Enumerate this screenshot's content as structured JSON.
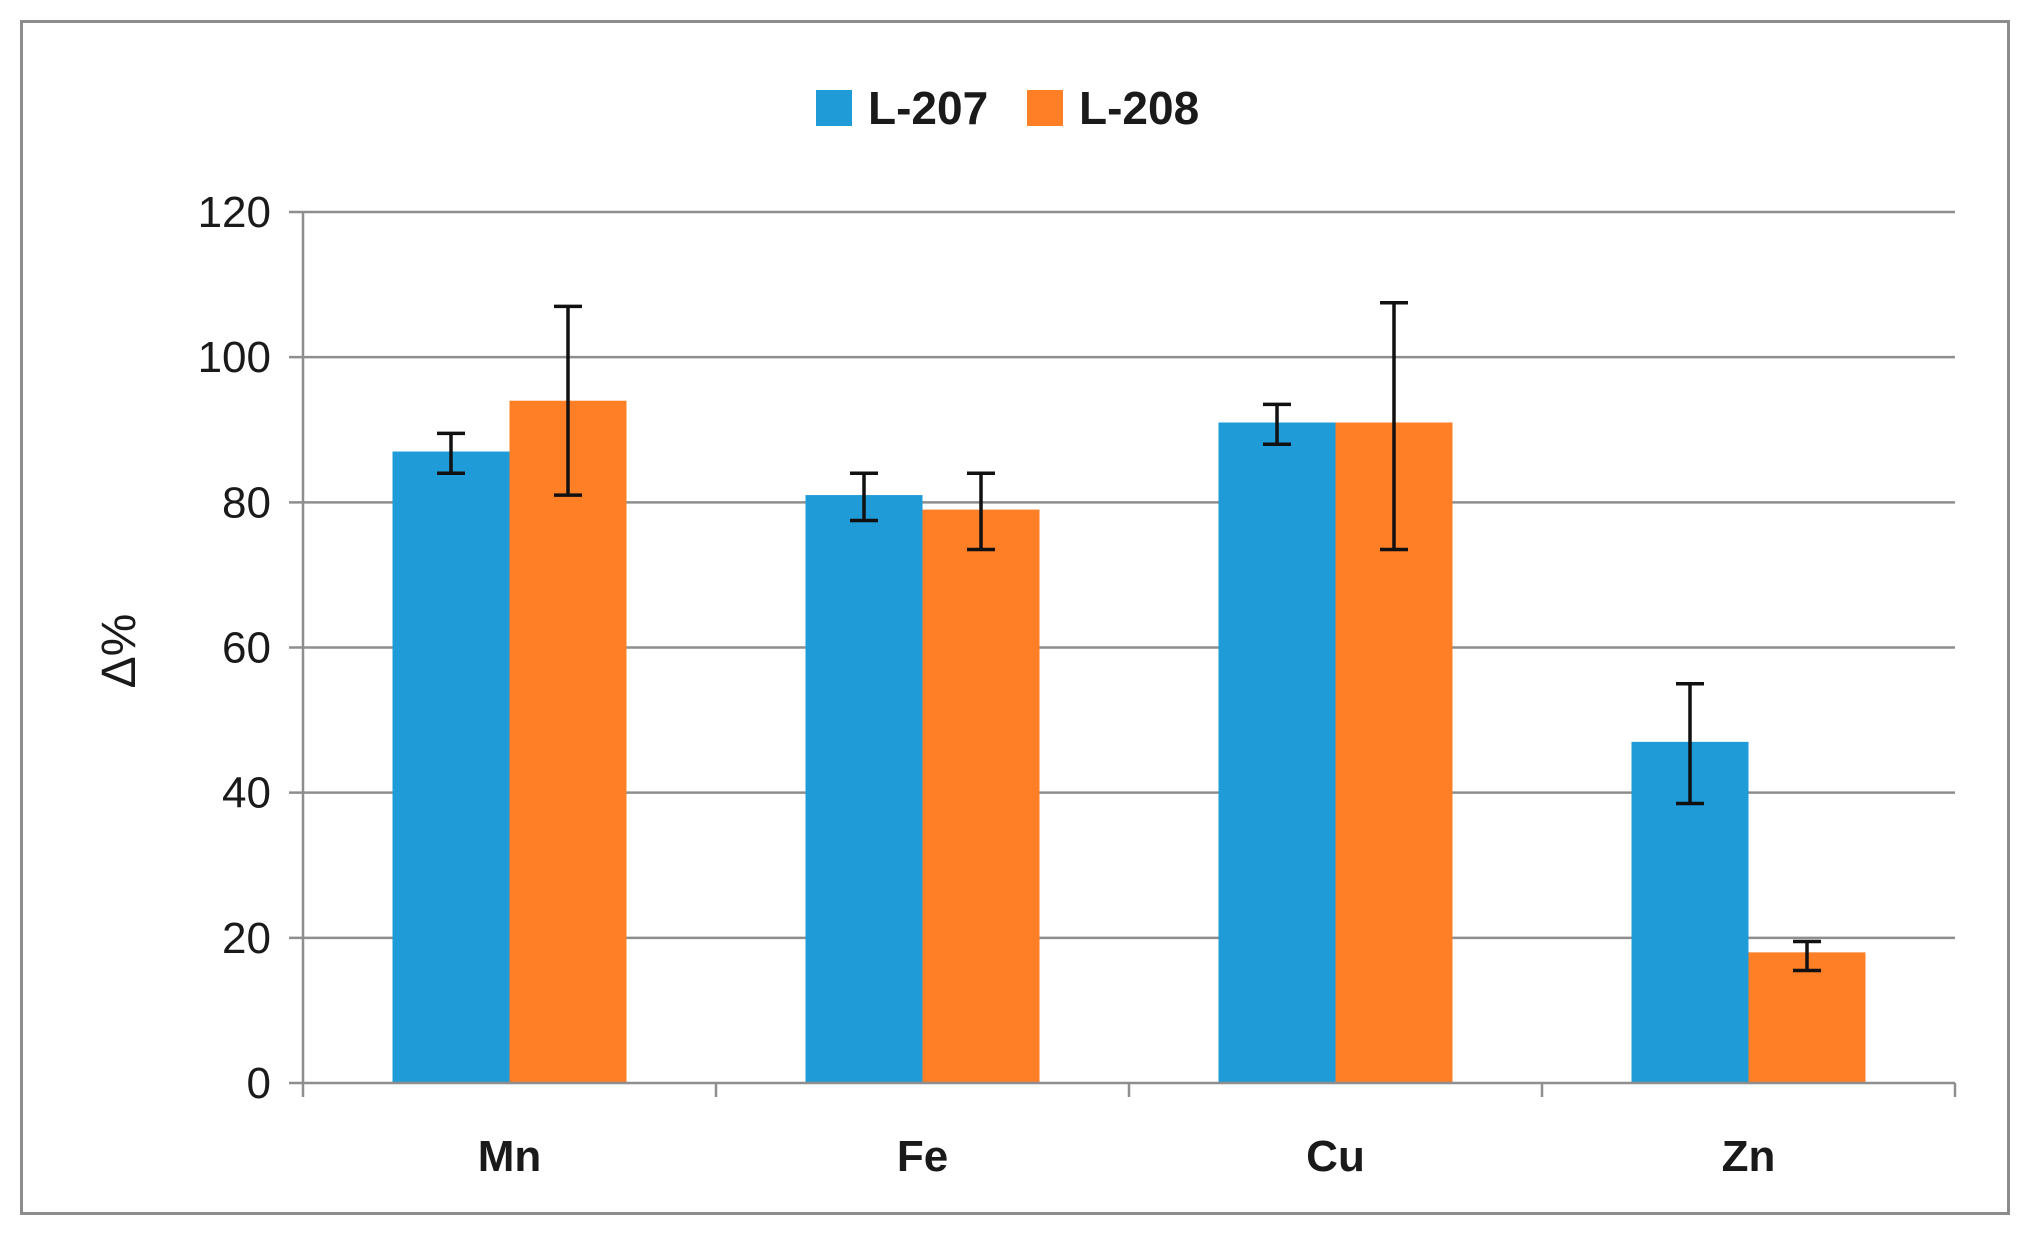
{
  "chart_data": {
    "type": "bar",
    "title": "",
    "xlabel": "",
    "ylabel": "Δ%",
    "categories": [
      "Mn",
      "Fe",
      "Cu",
      "Zn"
    ],
    "series": [
      {
        "name": "L-207",
        "color": "#1f9bd7",
        "values": [
          87,
          81,
          91,
          47
        ],
        "error_low": [
          84,
          77.5,
          88,
          38.5
        ],
        "error_high": [
          89.5,
          84,
          93.5,
          55
        ]
      },
      {
        "name": "L-208",
        "color": "#ff7f27",
        "values": [
          94,
          79,
          91,
          18
        ],
        "error_low": [
          81,
          73.5,
          73.5,
          15.5
        ],
        "error_high": [
          107,
          84,
          107.5,
          19.5
        ]
      }
    ],
    "ylim": [
      0,
      120
    ],
    "yticks": [
      "0",
      "20",
      "40",
      "60",
      "80",
      "100",
      "120"
    ],
    "grid": true,
    "legend_position": "top-center"
  }
}
